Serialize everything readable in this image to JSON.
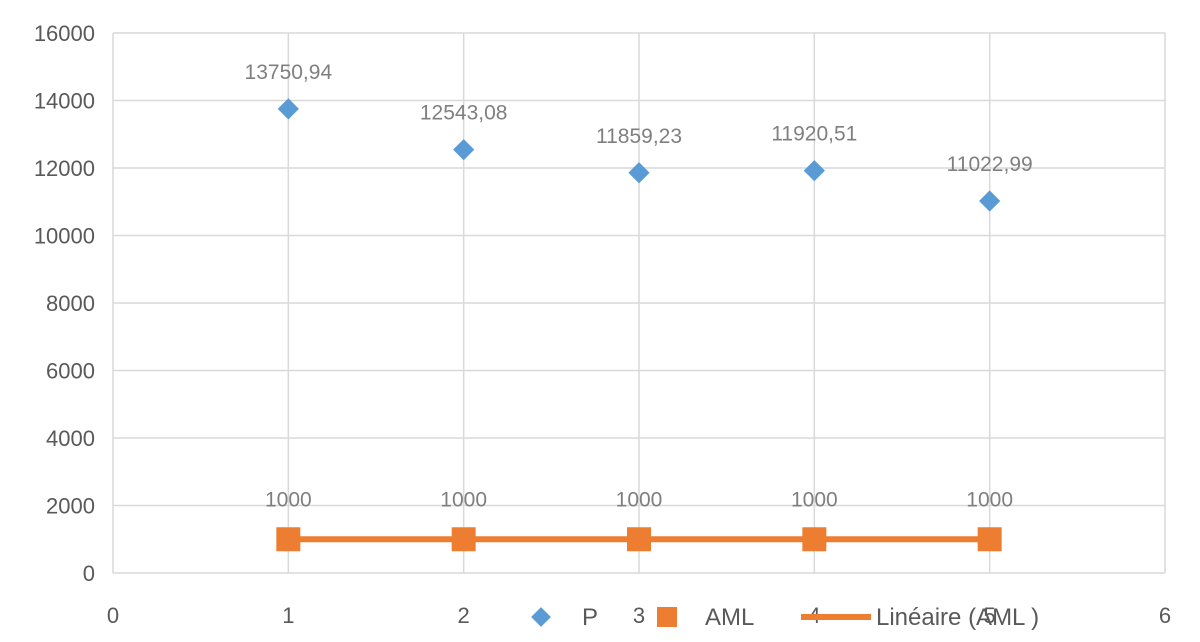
{
  "chart_data": {
    "type": "scatter",
    "title": "",
    "xlabel": "",
    "ylabel": "",
    "xlim": [
      0,
      6
    ],
    "ylim": [
      0,
      16000
    ],
    "x_ticks": [
      0,
      1,
      2,
      3,
      4,
      5,
      6
    ],
    "y_ticks": [
      0,
      2000,
      4000,
      6000,
      8000,
      10000,
      12000,
      14000,
      16000
    ],
    "grid": true,
    "legend_position": "bottom",
    "series": [
      {
        "name": "P",
        "marker": "diamond",
        "color": "#5b9bd5",
        "x": [
          1,
          2,
          3,
          4,
          5
        ],
        "y": [
          13750.94,
          12543.08,
          11859.23,
          11920.51,
          11022.99
        ],
        "labels": [
          "13750,94",
          "12543,08",
          "11859,23",
          "11920,51",
          "11022,99"
        ]
      },
      {
        "name": "AML",
        "marker": "square",
        "color": "#ed7d31",
        "x": [
          1,
          2,
          3,
          4,
          5
        ],
        "y": [
          1000,
          1000,
          1000,
          1000,
          1000
        ],
        "labels": [
          "1000",
          "1000",
          "1000",
          "1000",
          "1000"
        ]
      }
    ],
    "trendline": {
      "name": "Linéaire (AML )",
      "type": "linear",
      "series": "AML",
      "color": "#ed7d31",
      "x_range": [
        1,
        5
      ]
    }
  }
}
